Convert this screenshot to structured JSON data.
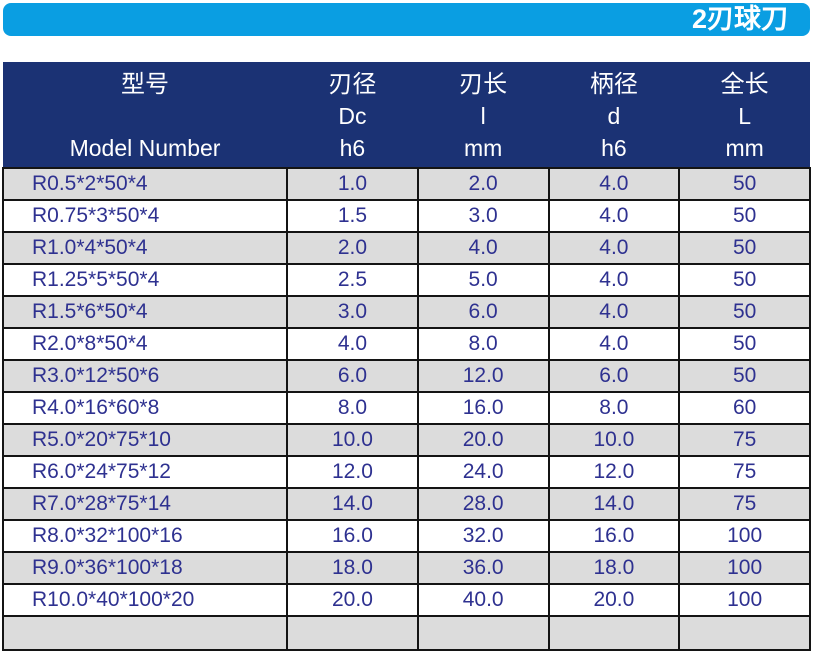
{
  "title_bar": {
    "label": "2刃球刀",
    "bg": "#0a9ee2",
    "text_color": "#ffffff"
  },
  "table": {
    "header": {
      "bg": "#1b3274",
      "text_color": "#ffffff",
      "columns": [
        {
          "zh": "型号",
          "symbol": "",
          "unit": "Model Number"
        },
        {
          "zh": "刃径",
          "symbol": "Dc",
          "unit": "h6"
        },
        {
          "zh": "刃长",
          "symbol": "l",
          "unit": "mm"
        },
        {
          "zh": "柄径",
          "symbol": "d",
          "unit": "h6"
        },
        {
          "zh": "全长",
          "symbol": "L",
          "unit": "mm"
        }
      ]
    },
    "text_color": "#2e3190",
    "border_color": "#141414",
    "row_colors": {
      "odd": "#dcdcdc",
      "even": "#ffffff"
    },
    "rows": [
      [
        "R0.5*2*50*4",
        "1.0",
        "2.0",
        "4.0",
        "50"
      ],
      [
        "R0.75*3*50*4",
        "1.5",
        "3.0",
        "4.0",
        "50"
      ],
      [
        "R1.0*4*50*4",
        "2.0",
        "4.0",
        "4.0",
        "50"
      ],
      [
        "R1.25*5*50*4",
        "2.5",
        "5.0",
        "4.0",
        "50"
      ],
      [
        "R1.5*6*50*4",
        "3.0",
        "6.0",
        "4.0",
        "50"
      ],
      [
        "R2.0*8*50*4",
        "4.0",
        "8.0",
        "4.0",
        "50"
      ],
      [
        "R3.0*12*50*6",
        "6.0",
        "12.0",
        "6.0",
        "50"
      ],
      [
        "R4.0*16*60*8",
        "8.0",
        "16.0",
        "8.0",
        "60"
      ],
      [
        "R5.0*20*75*10",
        "10.0",
        "20.0",
        "10.0",
        "75"
      ],
      [
        "R6.0*24*75*12",
        "12.0",
        "24.0",
        "12.0",
        "75"
      ],
      [
        "R7.0*28*75*14",
        "14.0",
        "28.0",
        "14.0",
        "75"
      ],
      [
        "R8.0*32*100*16",
        "16.0",
        "32.0",
        "16.0",
        "100"
      ],
      [
        "R9.0*36*100*18",
        "18.0",
        "36.0",
        "18.0",
        "100"
      ],
      [
        "R10.0*40*100*20",
        "20.0",
        "40.0",
        "20.0",
        "100"
      ]
    ]
  }
}
